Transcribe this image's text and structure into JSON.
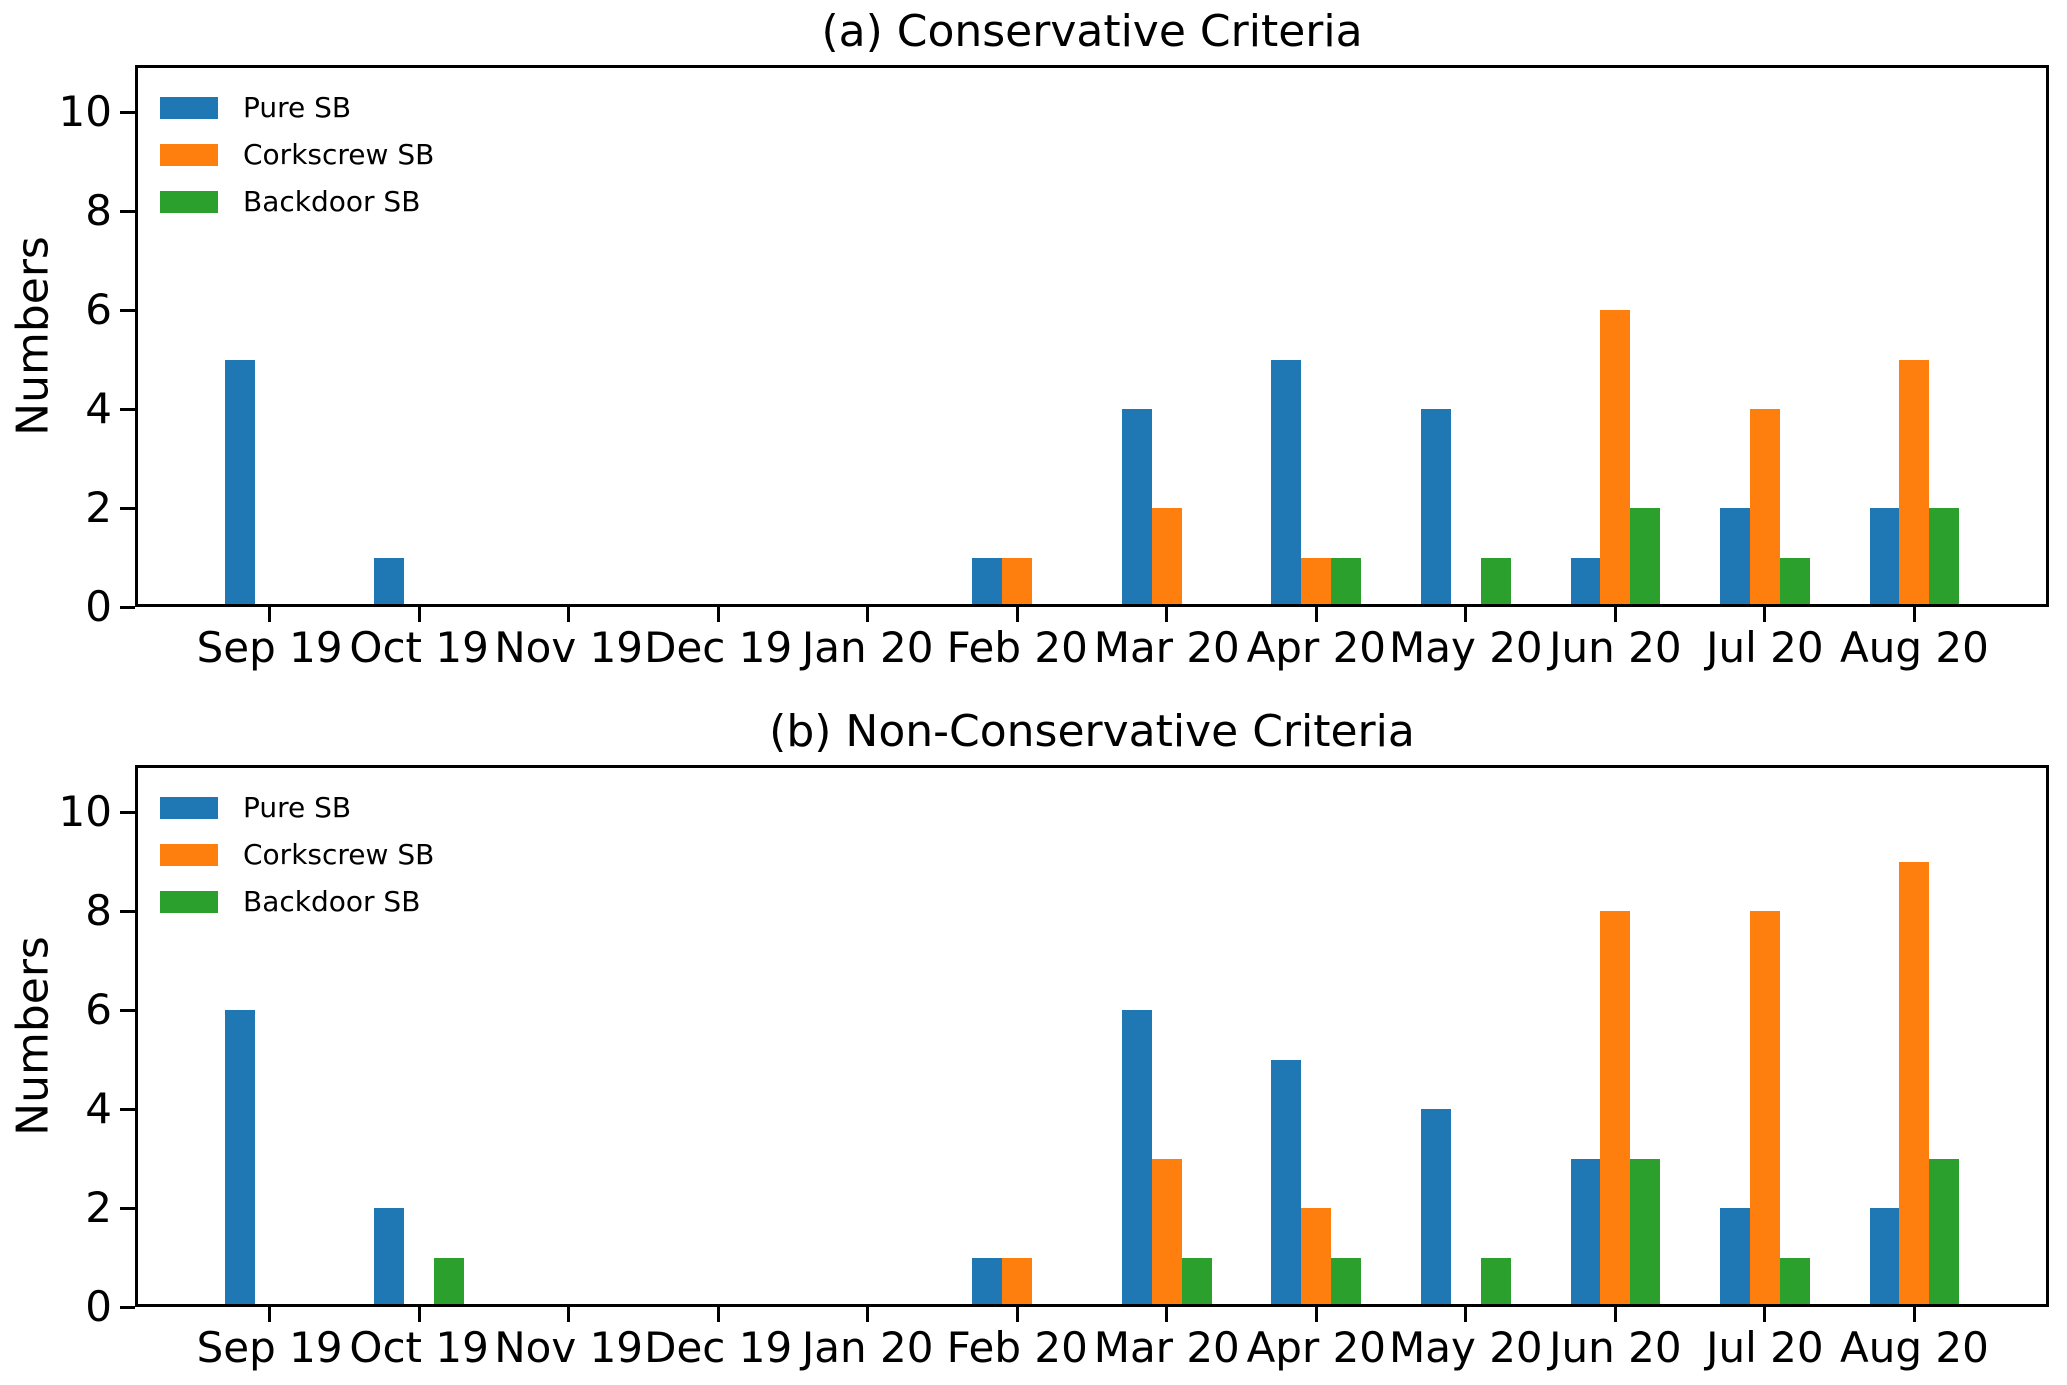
{
  "figure": {
    "background": "#ffffff",
    "axis_color": "#000000"
  },
  "chart_data": [
    {
      "type": "bar",
      "title": "(a) Conservative Criteria",
      "xlabel": "",
      "ylabel": "Numbers",
      "categories": [
        "Sep 19",
        "Oct 19",
        "Nov 19",
        "Dec 19",
        "Jan 20",
        "Feb 20",
        "Mar 20",
        "Apr 20",
        "May 20",
        "Jun 20",
        "Jul 20",
        "Aug 20"
      ],
      "series": [
        {
          "name": "Pure SB",
          "color": "#1f77b4",
          "values": [
            5,
            1,
            0,
            0,
            0,
            1,
            4,
            5,
            4,
            1,
            2,
            2
          ]
        },
        {
          "name": "Corkscrew SB",
          "color": "#ff7f0e",
          "values": [
            0,
            0,
            0,
            0,
            0,
            1,
            2,
            1,
            0,
            6,
            4,
            5
          ]
        },
        {
          "name": "Backdoor SB",
          "color": "#2ca02c",
          "values": [
            0,
            0,
            0,
            0,
            0,
            0,
            0,
            1,
            1,
            2,
            1,
            2
          ]
        }
      ],
      "yticks": [
        0,
        2,
        4,
        6,
        8,
        10
      ],
      "ylim": [
        0,
        10.95
      ],
      "grid": false,
      "legend_position": "upper-left"
    },
    {
      "type": "bar",
      "title": "(b) Non-Conservative Criteria",
      "xlabel": "",
      "ylabel": "Numbers",
      "categories": [
        "Sep 19",
        "Oct 19",
        "Nov 19",
        "Dec 19",
        "Jan 20",
        "Feb 20",
        "Mar 20",
        "Apr 20",
        "May 20",
        "Jun 20",
        "Jul 20",
        "Aug 20"
      ],
      "series": [
        {
          "name": "Pure SB",
          "color": "#1f77b4",
          "values": [
            6,
            2,
            0,
            0,
            0,
            1,
            6,
            5,
            4,
            3,
            2,
            2
          ]
        },
        {
          "name": "Corkscrew SB",
          "color": "#ff7f0e",
          "values": [
            0,
            0,
            0,
            0,
            0,
            1,
            3,
            2,
            0,
            8,
            8,
            9
          ]
        },
        {
          "name": "Backdoor SB",
          "color": "#2ca02c",
          "values": [
            0,
            1,
            0,
            0,
            0,
            0,
            1,
            1,
            1,
            3,
            1,
            3
          ]
        }
      ],
      "yticks": [
        0,
        2,
        4,
        6,
        8,
        10
      ],
      "ylim": [
        0,
        10.95
      ],
      "grid": false,
      "legend_position": "upper-left"
    }
  ]
}
